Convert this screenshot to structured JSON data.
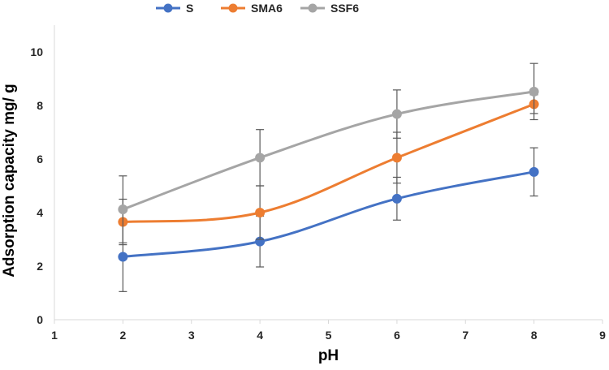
{
  "chart_data": {
    "type": "line",
    "smooth": true,
    "title": "",
    "xlabel": "pH",
    "ylabel": "Adsorption capacity mg/ g",
    "xlim": [
      1,
      9
    ],
    "ylim": [
      0,
      11
    ],
    "x_ticks": [
      "1",
      "2",
      "3",
      "4",
      "5",
      "6",
      "7",
      "8",
      "9"
    ],
    "y_ticks": [
      "0",
      "2",
      "4",
      "6",
      "8",
      "10"
    ],
    "grid": false,
    "legend_position": "top",
    "x": [
      2,
      4,
      6,
      8
    ],
    "series": [
      {
        "name": "S",
        "color": "#4472C4",
        "values": [
          2.35,
          2.92,
          4.52,
          5.52
        ],
        "error": [
          1.3,
          0.95,
          0.8,
          0.9
        ]
      },
      {
        "name": "SMA6",
        "color": "#ED7D31",
        "values": [
          3.65,
          4.0,
          6.05,
          8.05
        ],
        "error": [
          0.85,
          1.0,
          0.95,
          0.35
        ]
      },
      {
        "name": "SSF6",
        "color": "#A5A5A5",
        "values": [
          4.12,
          6.05,
          7.68,
          8.52
        ],
        "error": [
          1.25,
          1.05,
          0.9,
          1.05
        ]
      }
    ]
  }
}
